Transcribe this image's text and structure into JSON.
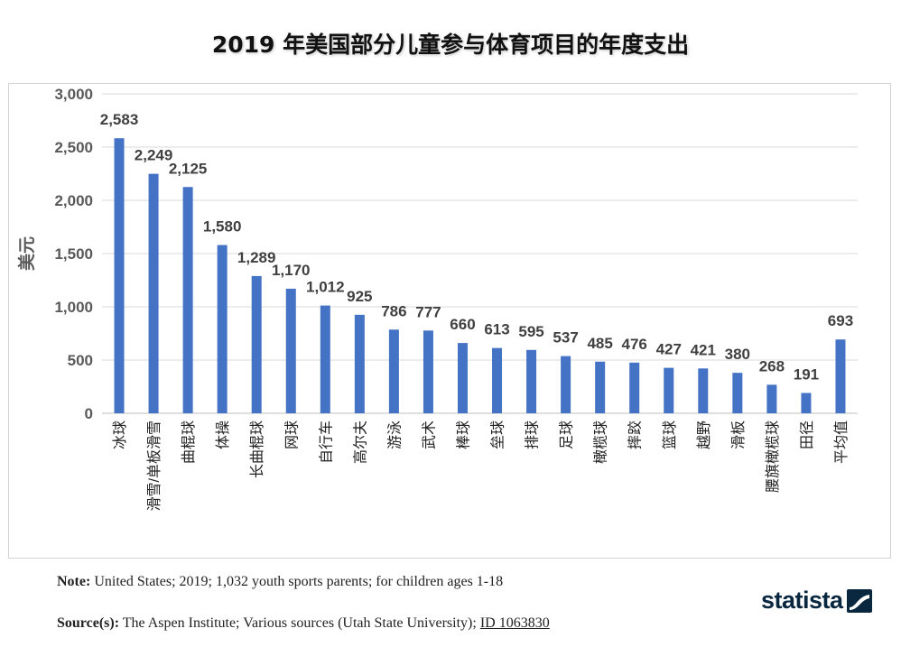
{
  "title": "2019 年美国部分儿童参与体育项目的年度支出",
  "note": {
    "label": "Note:",
    "text": " United States; 2019; 1,032 youth sports parents; for children ages 1-18"
  },
  "source": {
    "label": "Source(s):",
    "text": " The Aspen Institute; Various sources (Utah State University); ",
    "id": "ID 1063830"
  },
  "brand": {
    "name": "statista"
  },
  "chart_data": {
    "type": "bar",
    "ylabel": "美元",
    "ylim": [
      0,
      3000
    ],
    "yticks": [
      0,
      500,
      1000,
      1500,
      2000,
      2500,
      3000
    ],
    "grid": true,
    "bar_color": "#4472C4",
    "categories": [
      "冰球",
      "滑雪/单板滑雪",
      "曲棍球",
      "体操",
      "长曲棍球",
      "网球",
      "自行车",
      "高尔夫",
      "游泳",
      "武术",
      "棒球",
      "垒球",
      "排球",
      "足球",
      "橄榄球",
      "摔跤",
      "篮球",
      "越野",
      "滑板",
      "腰旗橄榄球",
      "田径",
      "平均值"
    ],
    "values": [
      2583,
      2249,
      2125,
      1580,
      1289,
      1170,
      1012,
      925,
      786,
      777,
      660,
      613,
      595,
      537,
      485,
      476,
      427,
      421,
      380,
      268,
      191,
      693
    ]
  }
}
